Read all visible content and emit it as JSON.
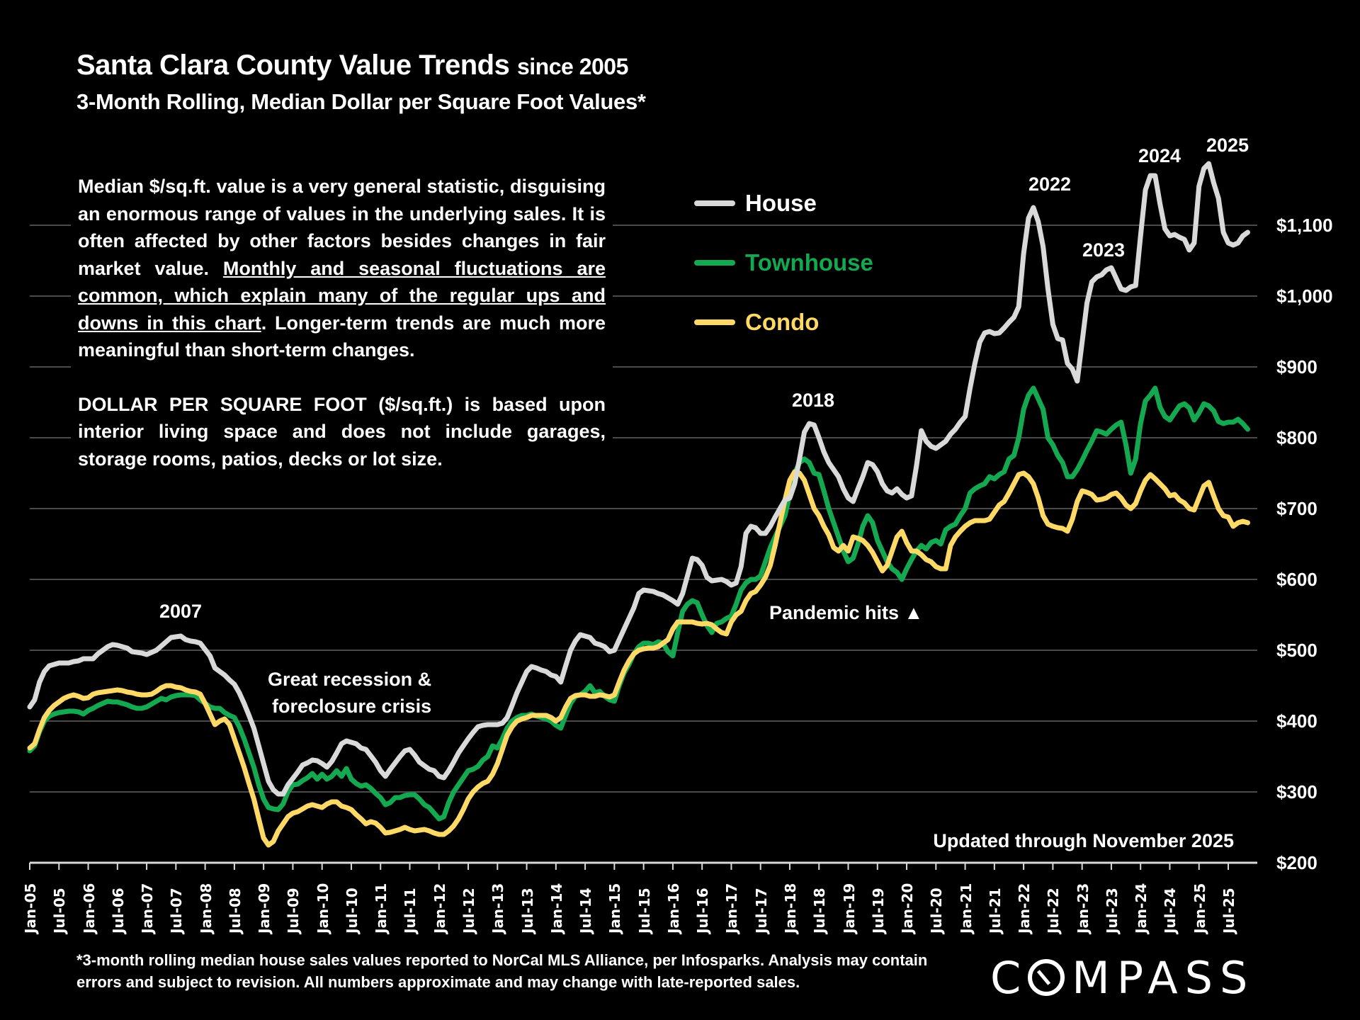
{
  "title": {
    "main": "Santa Clara County Value Trends",
    "since": "since 2005",
    "subtitle": "3-Month Rolling, Median Dollar per Square Foot Values*"
  },
  "notes": {
    "p1_a": "Median $/sq.ft. value is a very general statistic, disguising an enormous range of values in the underlying sales. It is often affected by other factors besides changes in fair market value. ",
    "p1_underlined": "Monthly and seasonal fluctuations are common, which explain many of the regular ups and downs in this chart",
    "p1_b": ". Longer-term trends are much more meaningful than short-term changes.",
    "p2": "DOLLAR PER SQUARE FOOT ($/sq.ft.) is based upon interior living space and does not include garages, storage rooms, patios, decks or lot size."
  },
  "updated": "Updated through November 2025",
  "footnote": "*3-month rolling median house sales values reported to NorCal MLS Alliance, per Infosparks. Analysis may contain errors and subject to revision. All numbers approximate and may change with late-reported sales.",
  "logo": {
    "pre": "C",
    "post": "MPASS"
  },
  "chart_data": {
    "type": "line",
    "title": "Santa Clara County Value Trends since 2005",
    "subtitle": "3-Month Rolling, Median Dollar per Square Foot Values*",
    "xlabel": "",
    "ylabel": "",
    "x_start": "Jan-05",
    "x_end": "Nov-25",
    "x_frequency": "monthly",
    "ylim": [
      200,
      1200
    ],
    "yticks": [
      200,
      300,
      400,
      500,
      600,
      700,
      800,
      900,
      1000,
      1100
    ],
    "ytick_labels": [
      "$200",
      "$300",
      "$400",
      "$500",
      "$600",
      "$700",
      "$800",
      "$900",
      "$1,000",
      "$1,100"
    ],
    "xtick_labels": [
      "Jan-05",
      "Jul-05",
      "Jan-06",
      "Jul-06",
      "Jan-07",
      "Jul-07",
      "Jan-08",
      "Jul-08",
      "Jan-09",
      "Jul-09",
      "Jan-10",
      "Jul-10",
      "Jan-11",
      "Jul-11",
      "Jan-12",
      "Jul-12",
      "Jan-13",
      "Jul-13",
      "Jan-14",
      "Jul-14",
      "Jan-15",
      "Jul-15",
      "Jan-16",
      "Jul-16",
      "Jan-17",
      "Jul-17",
      "Jan-18",
      "Jul-18",
      "Jan-19",
      "Jul-19",
      "Jan-20",
      "Jul-20",
      "Jan-21",
      "Jul-21",
      "Jan-22",
      "Jul-22",
      "Jan-23",
      "Jul-23",
      "Jan-24",
      "Jul-24",
      "Jan-25",
      "Jul-25"
    ],
    "grid": true,
    "legend_position": "top-center",
    "series": [
      {
        "name": "House",
        "color": "#d9d9d9",
        "values": [
          420,
          430,
          455,
          470,
          478,
          480,
          482,
          482,
          482,
          484,
          485,
          488,
          488,
          488,
          495,
          500,
          505,
          508,
          507,
          505,
          503,
          498,
          497,
          496,
          494,
          497,
          500,
          506,
          512,
          518,
          519,
          520,
          515,
          513,
          512,
          510,
          501,
          492,
          475,
          470,
          465,
          458,
          452,
          440,
          425,
          408,
          390,
          365,
          340,
          315,
          303,
          297,
          297,
          310,
          319,
          328,
          338,
          341,
          345,
          344,
          340,
          335,
          343,
          355,
          368,
          372,
          370,
          368,
          362,
          360,
          351,
          342,
          330,
          322,
          332,
          341,
          350,
          358,
          360,
          352,
          342,
          337,
          332,
          330,
          322,
          320,
          330,
          342,
          355,
          365,
          375,
          384,
          392,
          394,
          395,
          395,
          395,
          397,
          405,
          422,
          440,
          455,
          470,
          477,
          475,
          472,
          470,
          465,
          463,
          455,
          478,
          500,
          513,
          522,
          520,
          518,
          510,
          508,
          505,
          498,
          500,
          515,
          530,
          545,
          560,
          580,
          585,
          584,
          583,
          580,
          578,
          574,
          570,
          565,
          580,
          605,
          630,
          628,
          620,
          603,
          598,
          599,
          600,
          597,
          592,
          595,
          618,
          665,
          675,
          673,
          665,
          665,
          675,
          688,
          700,
          712,
          715,
          735,
          770,
          808,
          820,
          818,
          800,
          780,
          765,
          755,
          745,
          728,
          715,
          710,
          728,
          745,
          765,
          762,
          752,
          735,
          725,
          722,
          728,
          720,
          715,
          718,
          760,
          810,
          795,
          788,
          785,
          790,
          795,
          805,
          812,
          822,
          830,
          870,
          905,
          935,
          948,
          950,
          947,
          948,
          955,
          963,
          970,
          985,
          1060,
          1110,
          1125,
          1105,
          1070,
          1010,
          960,
          940,
          938,
          905,
          897,
          880,
          935,
          990,
          1020,
          1027,
          1030,
          1037,
          1040,
          1025,
          1010,
          1008,
          1013,
          1015,
          1085,
          1150,
          1170,
          1170,
          1130,
          1095,
          1085,
          1087,
          1083,
          1080,
          1065,
          1075,
          1155,
          1180,
          1187,
          1160,
          1138,
          1090,
          1075,
          1072,
          1075,
          1085,
          1090
        ]
      },
      {
        "name": "Townhouse",
        "color": "#14a850",
        "values": [
          358,
          365,
          385,
          400,
          407,
          410,
          412,
          413,
          414,
          414,
          413,
          410,
          415,
          418,
          422,
          425,
          428,
          427,
          427,
          425,
          423,
          420,
          418,
          418,
          420,
          424,
          428,
          432,
          430,
          434,
          436,
          437,
          437,
          437,
          436,
          430,
          425,
          420,
          418,
          418,
          412,
          408,
          405,
          392,
          375,
          355,
          335,
          310,
          290,
          278,
          276,
          275,
          283,
          300,
          310,
          311,
          316,
          320,
          326,
          318,
          325,
          318,
          322,
          330,
          322,
          333,
          318,
          312,
          308,
          310,
          305,
          298,
          292,
          282,
          285,
          292,
          292,
          295,
          296,
          296,
          290,
          282,
          278,
          270,
          262,
          265,
          285,
          300,
          310,
          320,
          330,
          332,
          336,
          345,
          350,
          365,
          362,
          375,
          390,
          400,
          405,
          408,
          408,
          410,
          407,
          405,
          403,
          400,
          394,
          390,
          408,
          425,
          435,
          437,
          442,
          450,
          440,
          442,
          435,
          430,
          428,
          450,
          468,
          480,
          495,
          505,
          510,
          510,
          508,
          512,
          510,
          498,
          492,
          525,
          555,
          565,
          570,
          567,
          550,
          535,
          525,
          538,
          540,
          545,
          548,
          565,
          585,
          595,
          600,
          600,
          605,
          625,
          645,
          660,
          675,
          690,
          720,
          750,
          765,
          770,
          765,
          750,
          748,
          725,
          700,
          680,
          660,
          640,
          625,
          630,
          650,
          675,
          690,
          680,
          655,
          640,
          625,
          615,
          610,
          600,
          615,
          628,
          640,
          648,
          643,
          652,
          655,
          650,
          670,
          675,
          678,
          690,
          700,
          722,
          728,
          732,
          735,
          745,
          742,
          748,
          752,
          770,
          775,
          800,
          840,
          860,
          870,
          855,
          840,
          800,
          790,
          775,
          765,
          745,
          745,
          755,
          768,
          782,
          795,
          810,
          808,
          805,
          812,
          818,
          822,
          790,
          750,
          770,
          820,
          852,
          860,
          870,
          843,
          830,
          825,
          835,
          845,
          848,
          842,
          825,
          835,
          848,
          845,
          838,
          823,
          820,
          822,
          822,
          826,
          820,
          812
        ]
      },
      {
        "name": "Condo",
        "color": "#ffd966",
        "values": [
          362,
          368,
          388,
          405,
          415,
          422,
          427,
          432,
          435,
          437,
          435,
          432,
          433,
          438,
          440,
          441,
          442,
          443,
          444,
          443,
          441,
          440,
          438,
          437,
          437,
          438,
          442,
          447,
          450,
          450,
          448,
          447,
          444,
          442,
          441,
          438,
          425,
          410,
          395,
          400,
          403,
          395,
          375,
          355,
          335,
          312,
          290,
          262,
          235,
          225,
          230,
          245,
          255,
          265,
          270,
          272,
          276,
          280,
          282,
          280,
          278,
          283,
          286,
          286,
          280,
          278,
          275,
          268,
          262,
          255,
          258,
          256,
          250,
          242,
          243,
          245,
          247,
          250,
          247,
          245,
          246,
          247,
          245,
          242,
          240,
          240,
          245,
          252,
          262,
          275,
          290,
          300,
          307,
          312,
          315,
          325,
          340,
          360,
          380,
          392,
          400,
          403,
          405,
          408,
          408,
          408,
          408,
          405,
          400,
          405,
          420,
          432,
          436,
          437,
          437,
          435,
          435,
          437,
          436,
          434,
          437,
          455,
          472,
          485,
          495,
          500,
          502,
          503,
          503,
          505,
          510,
          515,
          530,
          540,
          540,
          540,
          540,
          538,
          537,
          538,
          536,
          530,
          525,
          523,
          540,
          550,
          555,
          570,
          580,
          583,
          592,
          603,
          620,
          648,
          680,
          712,
          740,
          752,
          750,
          740,
          720,
          700,
          690,
          675,
          663,
          645,
          640,
          648,
          640,
          660,
          658,
          655,
          648,
          638,
          625,
          612,
          620,
          640,
          660,
          668,
          652,
          640,
          640,
          635,
          628,
          625,
          618,
          615,
          615,
          648,
          660,
          668,
          675,
          680,
          683,
          683,
          683,
          685,
          695,
          705,
          710,
          722,
          735,
          748,
          750,
          745,
          735,
          715,
          690,
          678,
          675,
          673,
          672,
          668,
          685,
          710,
          725,
          723,
          720,
          712,
          713,
          715,
          720,
          722,
          715,
          705,
          700,
          707,
          725,
          740,
          748,
          742,
          735,
          728,
          718,
          720,
          712,
          708,
          700,
          698,
          715,
          732,
          737,
          718,
          700,
          690,
          688,
          675,
          680,
          682,
          680
        ]
      }
    ],
    "annotations": [
      {
        "id": "y2007",
        "text": "2007"
      },
      {
        "id": "recession",
        "text": "Great recession & foreclosure crisis"
      },
      {
        "id": "y2018",
        "text": "2018"
      },
      {
        "id": "pandemic",
        "text": "Pandemic hits ▲"
      },
      {
        "id": "y2022",
        "text": "2022"
      },
      {
        "id": "y2023",
        "text": "2023"
      },
      {
        "id": "y2024",
        "text": "2024"
      },
      {
        "id": "y2025",
        "text": "2025"
      }
    ]
  },
  "recession_line1": "Great recession &",
  "recession_line2": "foreclosure crisis"
}
